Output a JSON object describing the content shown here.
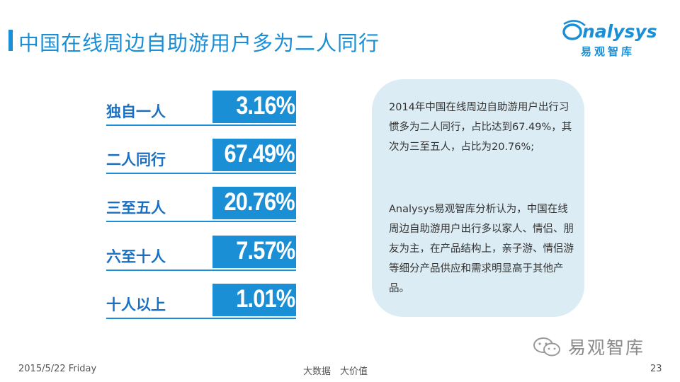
{
  "header": {
    "title": "中国在线周边自助游用户多为二人同行",
    "logo_word": "nalysys",
    "logo_cn": "易观智库"
  },
  "chart_data": {
    "type": "table",
    "title": "中国在线周边自助游用户多为二人同行",
    "categories": [
      "独自一人",
      "二人同行",
      "三至五人",
      "六至十人",
      "十人以上"
    ],
    "values": [
      3.16,
      67.49,
      20.76,
      7.57,
      1.01
    ],
    "value_labels": [
      "3.16%",
      "67.49%",
      "20.76%",
      "7.57%",
      "1.01%"
    ],
    "unit": "%"
  },
  "textbox": {
    "para1": "2014年中国在线周边自助游用户出行习惯多为二人同行，占比达到67.49%，其次为三至五人，占比为20.76%;",
    "para2": "Analysys易观智库分析认为，中国在线周边自助游用户出行多以家人、情侣、朋友为主，在产品结构上，亲子游、情侣游等细分产品供应和需求明显高于其他产品。"
  },
  "watermark": {
    "text": "易观智库",
    "icon": "wechat-icon"
  },
  "footer": {
    "date": "2015/5/22 Friday",
    "center": "大数据　大价值",
    "page": "23"
  },
  "colors": {
    "accent": "#1a8fd6",
    "label": "#1a6fc0",
    "textbox_bg": "#dcecf4"
  }
}
